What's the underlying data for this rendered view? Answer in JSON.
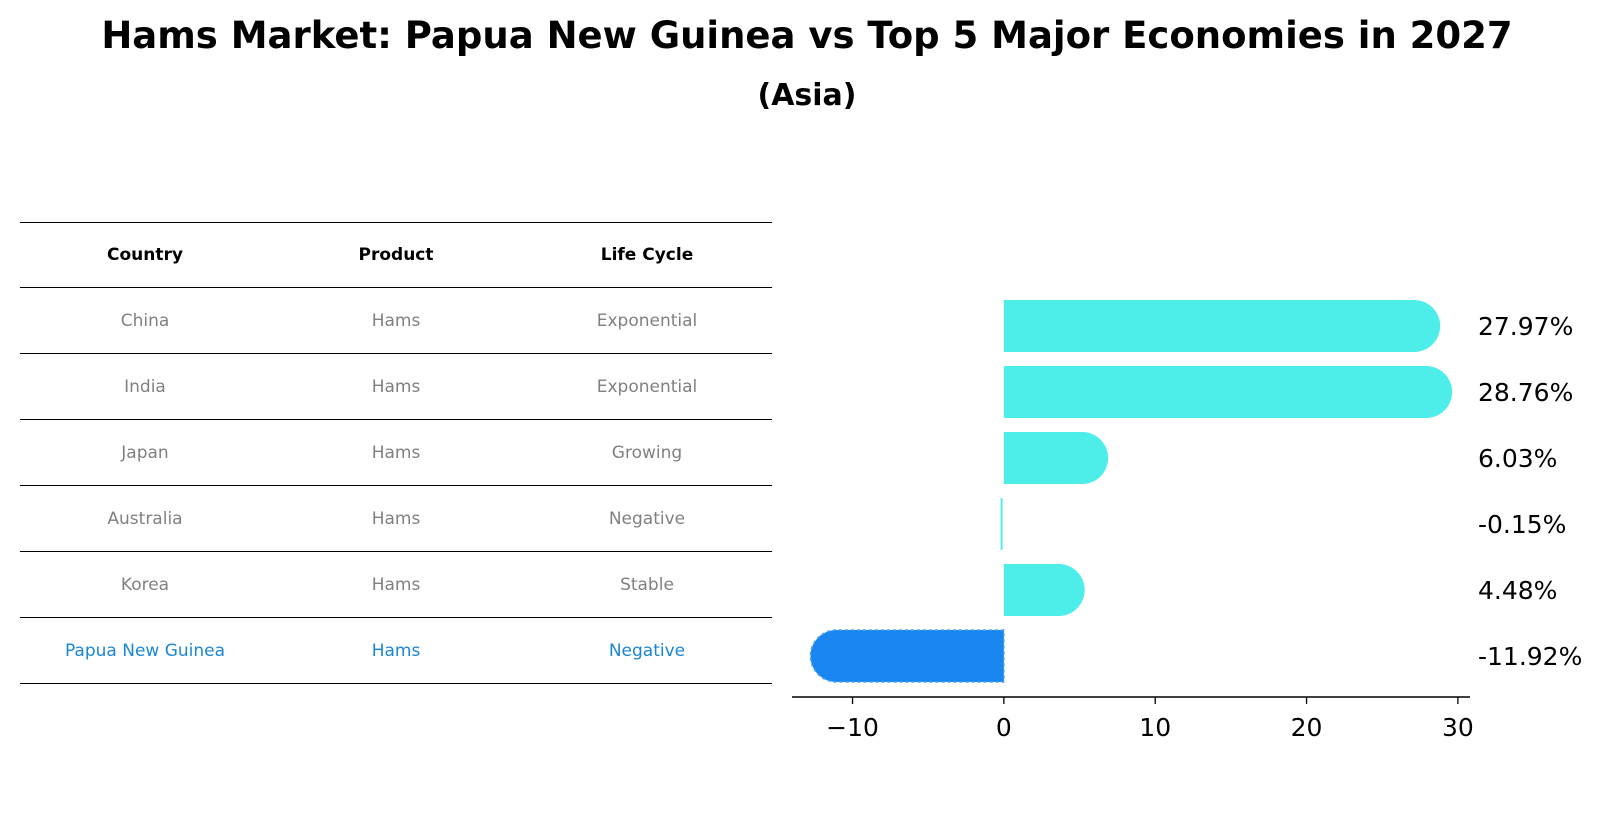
{
  "title": "Hams Market: Papua New Guinea vs Top 5 Major Economies in 2027",
  "subtitle": "(Asia)",
  "table": {
    "headers": [
      "Country",
      "Product",
      "Life Cycle"
    ],
    "rows": [
      [
        "China",
        "Hams",
        "Exponential"
      ],
      [
        "India",
        "Hams",
        "Exponential"
      ],
      [
        "Japan",
        "Hams",
        "Growing"
      ],
      [
        "Australia",
        "Hams",
        "Negative"
      ],
      [
        "Korea",
        "Hams",
        "Stable"
      ],
      [
        "Papua New Guinea",
        "Hams",
        "Negative"
      ]
    ],
    "highlight_row": 5,
    "highlight_color": "#1a86d6"
  },
  "chart_data": {
    "type": "bar",
    "orientation": "horizontal",
    "categories": [
      "China",
      "India",
      "Japan",
      "Australia",
      "Korea",
      "Papua New Guinea"
    ],
    "values": [
      27.97,
      28.76,
      6.03,
      -0.15,
      4.48,
      -11.92
    ],
    "value_labels": [
      "27.97%",
      "28.76%",
      "6.03%",
      "-0.15%",
      "4.48%",
      "-11.92%"
    ],
    "xlim": [
      -14,
      30.8
    ],
    "xticks": [
      -10,
      0,
      10,
      20,
      30
    ],
    "xtick_labels": [
      "−10",
      "0",
      "10",
      "20",
      "30"
    ],
    "colors": {
      "default": "#4deeea",
      "highlight": "#1a86f0"
    },
    "highlight_index": 5,
    "grid": false,
    "legend": "none"
  }
}
